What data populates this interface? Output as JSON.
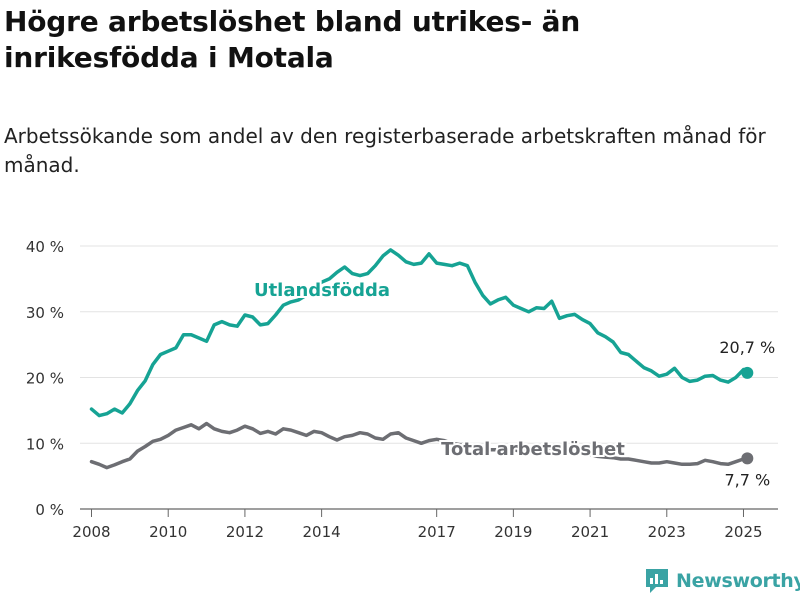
{
  "header": {
    "title": "Högre arbetslöshet bland utrikes- än inrikesfödda i Motala",
    "subtitle": "Arbetssökande som andel av den registerbaserade arbetskraften månad för månad."
  },
  "brand": {
    "name": "Newsworthy",
    "icon": "bar-chart-icon",
    "color": "#3aa3a4"
  },
  "chart_data": {
    "type": "line",
    "title": "",
    "xlabel": "",
    "ylabel": "",
    "ylim": [
      0,
      40
    ],
    "xlim": [
      2007.7,
      2025.9
    ],
    "grid": true,
    "y_ticks": [
      0,
      10,
      20,
      30,
      40
    ],
    "y_tick_labels": [
      "0 %",
      "10 %",
      "20 %",
      "30 %",
      "40 %"
    ],
    "x_ticks": [
      2008,
      2010,
      2012,
      2014,
      2017,
      2019,
      2021,
      2023,
      2025
    ],
    "x_tick_labels": [
      "2008",
      "2010",
      "2012",
      "2014",
      "2017",
      "2019",
      "2021",
      "2023",
      "2025"
    ],
    "series": [
      {
        "name": "Utlandsfödda",
        "color": "#16a394",
        "end_label": "20,7 %",
        "points": [
          [
            2008.0,
            15.2
          ],
          [
            2008.2,
            14.2
          ],
          [
            2008.4,
            14.5
          ],
          [
            2008.6,
            15.2
          ],
          [
            2008.8,
            14.6
          ],
          [
            2009.0,
            16.0
          ],
          [
            2009.2,
            18.0
          ],
          [
            2009.4,
            19.5
          ],
          [
            2009.6,
            22.0
          ],
          [
            2009.8,
            23.5
          ],
          [
            2010.0,
            24.0
          ],
          [
            2010.2,
            24.5
          ],
          [
            2010.4,
            26.5
          ],
          [
            2010.6,
            26.5
          ],
          [
            2010.8,
            26.0
          ],
          [
            2011.0,
            25.5
          ],
          [
            2011.2,
            28.0
          ],
          [
            2011.4,
            28.5
          ],
          [
            2011.6,
            28.0
          ],
          [
            2011.8,
            27.8
          ],
          [
            2012.0,
            29.5
          ],
          [
            2012.2,
            29.2
          ],
          [
            2012.4,
            28.0
          ],
          [
            2012.6,
            28.2
          ],
          [
            2012.8,
            29.5
          ],
          [
            2013.0,
            31.0
          ],
          [
            2013.2,
            31.5
          ],
          [
            2013.4,
            31.8
          ],
          [
            2013.6,
            32.5
          ],
          [
            2013.8,
            33.8
          ],
          [
            2014.0,
            34.5
          ],
          [
            2014.2,
            35.0
          ],
          [
            2014.4,
            36.0
          ],
          [
            2014.6,
            36.8
          ],
          [
            2014.8,
            35.8
          ],
          [
            2015.0,
            35.5
          ],
          [
            2015.2,
            35.8
          ],
          [
            2015.4,
            37.0
          ],
          [
            2015.6,
            38.5
          ],
          [
            2015.8,
            39.4
          ],
          [
            2016.0,
            38.6
          ],
          [
            2016.2,
            37.6
          ],
          [
            2016.4,
            37.2
          ],
          [
            2016.6,
            37.4
          ],
          [
            2016.8,
            38.8
          ],
          [
            2017.0,
            37.4
          ],
          [
            2017.2,
            37.2
          ],
          [
            2017.4,
            37.0
          ],
          [
            2017.6,
            37.4
          ],
          [
            2017.8,
            37.0
          ],
          [
            2018.0,
            34.5
          ],
          [
            2018.2,
            32.5
          ],
          [
            2018.4,
            31.2
          ],
          [
            2018.6,
            31.8
          ],
          [
            2018.8,
            32.2
          ],
          [
            2019.0,
            31.0
          ],
          [
            2019.2,
            30.5
          ],
          [
            2019.4,
            30.0
          ],
          [
            2019.6,
            30.6
          ],
          [
            2019.8,
            30.5
          ],
          [
            2020.0,
            31.6
          ],
          [
            2020.2,
            29.0
          ],
          [
            2020.4,
            29.4
          ],
          [
            2020.6,
            29.6
          ],
          [
            2020.8,
            28.8
          ],
          [
            2021.0,
            28.2
          ],
          [
            2021.2,
            26.8
          ],
          [
            2021.4,
            26.2
          ],
          [
            2021.6,
            25.4
          ],
          [
            2021.8,
            23.8
          ],
          [
            2022.0,
            23.5
          ],
          [
            2022.2,
            22.5
          ],
          [
            2022.4,
            21.5
          ],
          [
            2022.6,
            21.0
          ],
          [
            2022.8,
            20.2
          ],
          [
            2023.0,
            20.5
          ],
          [
            2023.2,
            21.4
          ],
          [
            2023.4,
            20.0
          ],
          [
            2023.6,
            19.4
          ],
          [
            2023.8,
            19.6
          ],
          [
            2024.0,
            20.2
          ],
          [
            2024.2,
            20.3
          ],
          [
            2024.4,
            19.6
          ],
          [
            2024.6,
            19.3
          ],
          [
            2024.8,
            20.0
          ],
          [
            2025.0,
            21.2
          ],
          [
            2025.1,
            20.7
          ]
        ]
      },
      {
        "name": "Total arbetslöshet",
        "color": "#6d6e73",
        "end_label": "7,7 %",
        "points": [
          [
            2008.0,
            7.2
          ],
          [
            2008.2,
            6.8
          ],
          [
            2008.4,
            6.3
          ],
          [
            2008.6,
            6.7
          ],
          [
            2008.8,
            7.2
          ],
          [
            2009.0,
            7.6
          ],
          [
            2009.2,
            8.8
          ],
          [
            2009.4,
            9.5
          ],
          [
            2009.6,
            10.3
          ],
          [
            2009.8,
            10.6
          ],
          [
            2010.0,
            11.2
          ],
          [
            2010.2,
            12.0
          ],
          [
            2010.4,
            12.4
          ],
          [
            2010.6,
            12.8
          ],
          [
            2010.8,
            12.2
          ],
          [
            2011.0,
            13.0
          ],
          [
            2011.2,
            12.2
          ],
          [
            2011.4,
            11.8
          ],
          [
            2011.6,
            11.6
          ],
          [
            2011.8,
            12.0
          ],
          [
            2012.0,
            12.6
          ],
          [
            2012.2,
            12.2
          ],
          [
            2012.4,
            11.5
          ],
          [
            2012.6,
            11.8
          ],
          [
            2012.8,
            11.4
          ],
          [
            2013.0,
            12.2
          ],
          [
            2013.2,
            12.0
          ],
          [
            2013.4,
            11.6
          ],
          [
            2013.6,
            11.2
          ],
          [
            2013.8,
            11.8
          ],
          [
            2014.0,
            11.6
          ],
          [
            2014.2,
            11.0
          ],
          [
            2014.4,
            10.5
          ],
          [
            2014.6,
            11.0
          ],
          [
            2014.8,
            11.2
          ],
          [
            2015.0,
            11.6
          ],
          [
            2015.2,
            11.4
          ],
          [
            2015.4,
            10.8
          ],
          [
            2015.6,
            10.6
          ],
          [
            2015.8,
            11.4
          ],
          [
            2016.0,
            11.6
          ],
          [
            2016.2,
            10.8
          ],
          [
            2016.4,
            10.4
          ],
          [
            2016.6,
            10.0
          ],
          [
            2016.8,
            10.4
          ],
          [
            2017.0,
            10.6
          ],
          [
            2017.2,
            10.4
          ],
          [
            2017.4,
            10.0
          ],
          [
            2017.6,
            9.8
          ],
          [
            2017.8,
            9.8
          ],
          [
            2018.0,
            9.6
          ],
          [
            2018.2,
            9.2
          ],
          [
            2018.4,
            9.0
          ],
          [
            2018.6,
            9.0
          ],
          [
            2018.8,
            9.1
          ],
          [
            2019.0,
            9.0
          ],
          [
            2019.2,
            8.8
          ],
          [
            2019.4,
            8.9
          ],
          [
            2019.6,
            9.0
          ],
          [
            2019.8,
            8.9
          ],
          [
            2020.0,
            9.4
          ],
          [
            2020.2,
            9.2
          ],
          [
            2020.4,
            8.8
          ],
          [
            2020.6,
            8.6
          ],
          [
            2020.8,
            8.6
          ],
          [
            2021.0,
            8.3
          ],
          [
            2021.2,
            8.0
          ],
          [
            2021.4,
            7.9
          ],
          [
            2021.6,
            7.8
          ],
          [
            2021.8,
            7.6
          ],
          [
            2022.0,
            7.6
          ],
          [
            2022.2,
            7.4
          ],
          [
            2022.4,
            7.2
          ],
          [
            2022.6,
            7.0
          ],
          [
            2022.8,
            7.0
          ],
          [
            2023.0,
            7.2
          ],
          [
            2023.2,
            7.0
          ],
          [
            2023.4,
            6.8
          ],
          [
            2023.6,
            6.8
          ],
          [
            2023.8,
            6.9
          ],
          [
            2024.0,
            7.4
          ],
          [
            2024.2,
            7.2
          ],
          [
            2024.4,
            6.9
          ],
          [
            2024.6,
            6.8
          ],
          [
            2024.8,
            7.2
          ],
          [
            2025.0,
            7.6
          ],
          [
            2025.1,
            7.7
          ]
        ]
      }
    ]
  }
}
